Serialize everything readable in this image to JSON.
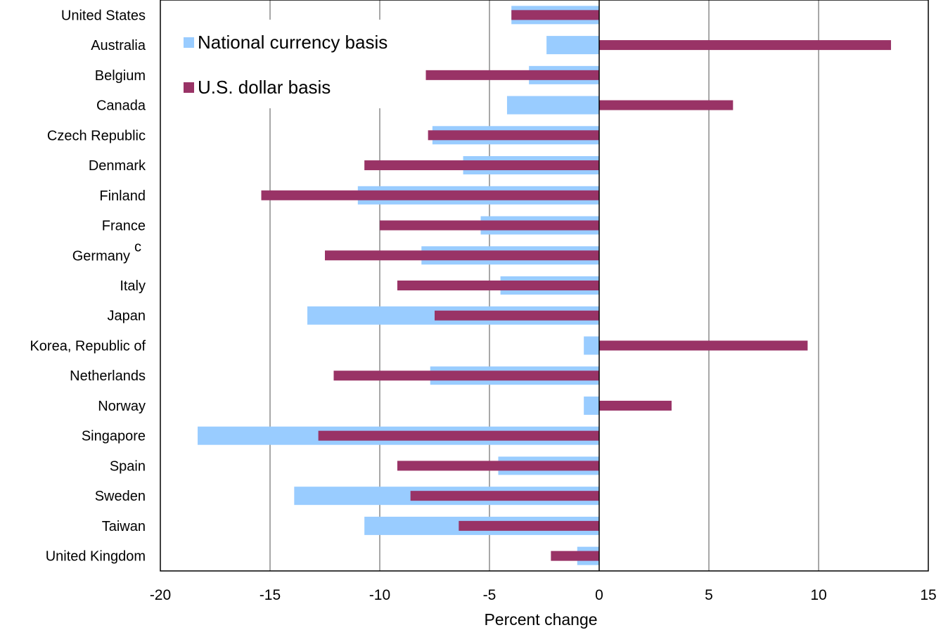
{
  "chart_data": {
    "type": "bar",
    "orientation": "horizontal",
    "categories": [
      "United States",
      "Australia",
      "Belgium",
      "Canada",
      "Czech Republic",
      "Denmark",
      "Finland",
      "France",
      "Germany",
      "Italy",
      "Japan",
      "Korea, Republic of",
      "Netherlands",
      "Norway",
      "Singapore",
      "Spain",
      "Sweden",
      "Taiwan",
      "United Kingdom"
    ],
    "category_footnotes": {
      "Germany": "c"
    },
    "series": [
      {
        "name": "National currency basis",
        "color": "#99CCFF",
        "values": [
          -4.0,
          -2.4,
          -3.2,
          -4.2,
          -7.6,
          -6.2,
          -11.0,
          -5.4,
          -8.1,
          -4.5,
          -13.3,
          -0.7,
          -7.7,
          -0.7,
          -18.3,
          -4.6,
          -13.9,
          -10.7,
          -1.0
        ]
      },
      {
        "name": "U.S. dollar basis",
        "color": "#993366",
        "values": [
          -4.0,
          13.3,
          -7.9,
          6.1,
          -7.8,
          -10.7,
          -15.4,
          -10.0,
          -12.5,
          -9.2,
          -7.5,
          9.5,
          -12.1,
          3.3,
          -12.8,
          -9.2,
          -8.6,
          -6.4,
          -2.2
        ]
      }
    ],
    "xlabel": "Percent change",
    "xlim": [
      -20,
      15
    ],
    "xticks": [
      -20,
      -15,
      -10,
      -5,
      0,
      5,
      10,
      15
    ],
    "grid": "vertical",
    "legend_position": "top-left"
  }
}
